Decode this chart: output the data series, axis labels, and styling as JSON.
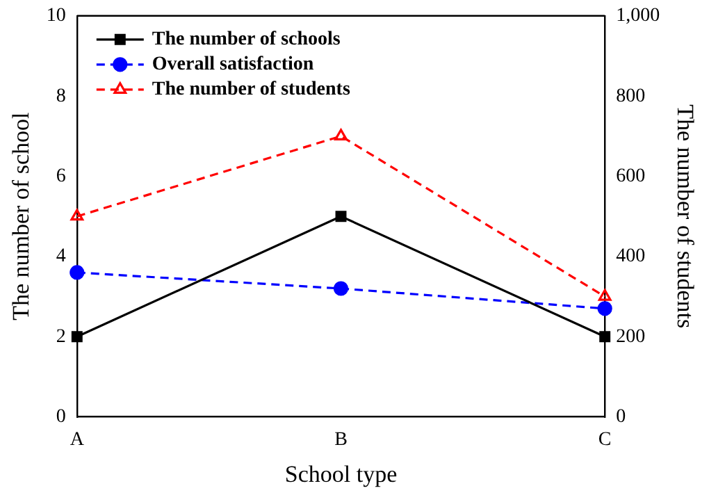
{
  "chart_data": {
    "type": "line",
    "xlabel": "School type",
    "ylabel": "The number of school",
    "y2label": "The number of students",
    "categories": [
      "A",
      "B",
      "C"
    ],
    "series": [
      {
        "name": "The number of schools",
        "color": "#000000",
        "values": [
          2,
          5,
          2
        ],
        "marker": "square",
        "line_style": "solid"
      },
      {
        "name": "Overall satisfaction",
        "color": "#0000ff",
        "values": [
          3.6,
          3.2,
          2.7
        ],
        "marker": "circle",
        "line_style": "dashed"
      },
      {
        "name": "The number of students",
        "color": "#ff0000",
        "values": [
          500,
          700,
          300
        ],
        "marker": "triangle",
        "line_style": "dashed",
        "axis": "y2"
      }
    ],
    "ylim": [
      0,
      10
    ],
    "yticks": [
      0,
      2,
      4,
      6,
      8,
      10
    ],
    "y2lim": [
      0,
      1000
    ],
    "y2ticks": [
      0,
      200,
      400,
      600,
      800,
      {
        "value": 1000,
        "label": "1,000"
      }
    ],
    "grid": false,
    "legend": "top left"
  }
}
